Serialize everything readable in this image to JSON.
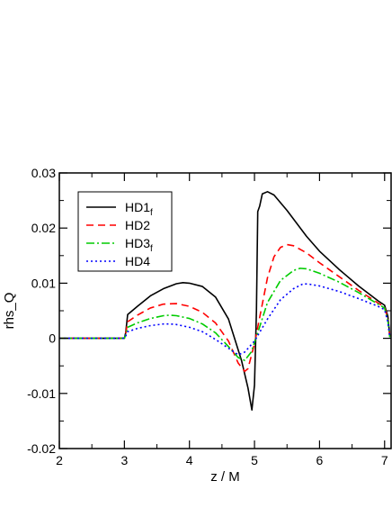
{
  "chart_data": {
    "type": "line",
    "xlabel": "z / M",
    "ylabel": "rhs_Q",
    "xlim": [
      2,
      7.1
    ],
    "ylim": [
      -0.02,
      0.03
    ],
    "xticks": [
      2,
      3,
      4,
      5,
      6,
      7
    ],
    "xtick_labels": [
      "2",
      "3",
      "4",
      "5",
      "6",
      "7"
    ],
    "yticks": [
      -0.02,
      -0.01,
      0,
      0.01,
      0.02,
      0.03
    ],
    "ytick_labels": [
      "-0.02",
      "-0.01",
      "0",
      "0.01",
      "0.02",
      "0.03"
    ],
    "grid": false,
    "legend_position": "top-left",
    "series": [
      {
        "name": "HD1",
        "subscript": "f",
        "color": "#000000",
        "dash": "",
        "points": [
          [
            2,
            0
          ],
          [
            2.4,
            0
          ],
          [
            2.8,
            0
          ],
          [
            3.0,
            0
          ],
          [
            3.02,
            0.001
          ],
          [
            3.05,
            0.0043
          ],
          [
            3.2,
            0.0058
          ],
          [
            3.4,
            0.0077
          ],
          [
            3.6,
            0.009
          ],
          [
            3.8,
            0.0099
          ],
          [
            3.9,
            0.0101
          ],
          [
            4.0,
            0.01
          ],
          [
            4.2,
            0.0094
          ],
          [
            4.4,
            0.0075
          ],
          [
            4.6,
            0.0035
          ],
          [
            4.8,
            -0.004
          ],
          [
            4.9,
            -0.009
          ],
          [
            4.96,
            -0.013
          ],
          [
            5.0,
            -0.0085
          ],
          [
            5.03,
            0.005
          ],
          [
            5.05,
            0.023
          ],
          [
            5.08,
            0.024
          ],
          [
            5.12,
            0.0262
          ],
          [
            5.2,
            0.0266
          ],
          [
            5.3,
            0.026
          ],
          [
            5.5,
            0.0232
          ],
          [
            5.8,
            0.0185
          ],
          [
            6.0,
            0.0158
          ],
          [
            6.3,
            0.0125
          ],
          [
            6.6,
            0.0095
          ],
          [
            6.9,
            0.0068
          ],
          [
            7.0,
            0.006
          ],
          [
            7.05,
            0.004
          ],
          [
            7.08,
            0.0005
          ]
        ]
      },
      {
        "name": "HD2",
        "subscript": "",
        "color": "#ff0000",
        "dash": "8,5",
        "points": [
          [
            2,
            0
          ],
          [
            2.4,
            0
          ],
          [
            2.8,
            0
          ],
          [
            3.0,
            0
          ],
          [
            3.02,
            0.0008
          ],
          [
            3.05,
            0.003
          ],
          [
            3.2,
            0.0042
          ],
          [
            3.4,
            0.0055
          ],
          [
            3.6,
            0.0062
          ],
          [
            3.8,
            0.0063
          ],
          [
            4.0,
            0.0058
          ],
          [
            4.2,
            0.0047
          ],
          [
            4.4,
            0.0028
          ],
          [
            4.6,
            -0.0005
          ],
          [
            4.75,
            -0.0045
          ],
          [
            4.85,
            -0.006
          ],
          [
            4.9,
            -0.0055
          ],
          [
            5.0,
            -0.001
          ],
          [
            5.1,
            0.005
          ],
          [
            5.2,
            0.011
          ],
          [
            5.3,
            0.0148
          ],
          [
            5.4,
            0.0165
          ],
          [
            5.5,
            0.017
          ],
          [
            5.6,
            0.0168
          ],
          [
            5.8,
            0.0155
          ],
          [
            6.0,
            0.0137
          ],
          [
            6.3,
            0.0112
          ],
          [
            6.6,
            0.0087
          ],
          [
            6.9,
            0.0064
          ],
          [
            7.0,
            0.0057
          ],
          [
            7.05,
            0.0035
          ],
          [
            7.08,
            0.0003
          ]
        ]
      },
      {
        "name": "HD3",
        "subscript": "f",
        "color": "#00cc00",
        "dash": "9,3,2,3",
        "points": [
          [
            2,
            0
          ],
          [
            2.4,
            0
          ],
          [
            2.8,
            0
          ],
          [
            3.0,
            0
          ],
          [
            3.02,
            0.0006
          ],
          [
            3.05,
            0.002
          ],
          [
            3.2,
            0.0028
          ],
          [
            3.4,
            0.0036
          ],
          [
            3.6,
            0.0041
          ],
          [
            3.7,
            0.0042
          ],
          [
            3.8,
            0.0041
          ],
          [
            4.0,
            0.0036
          ],
          [
            4.2,
            0.0026
          ],
          [
            4.4,
            0.001
          ],
          [
            4.6,
            -0.0015
          ],
          [
            4.75,
            -0.0035
          ],
          [
            4.85,
            -0.004
          ],
          [
            4.95,
            -0.0025
          ],
          [
            5.05,
            0.001
          ],
          [
            5.2,
            0.0065
          ],
          [
            5.4,
            0.0105
          ],
          [
            5.6,
            0.0123
          ],
          [
            5.7,
            0.0127
          ],
          [
            5.8,
            0.0126
          ],
          [
            6.0,
            0.0118
          ],
          [
            6.3,
            0.0102
          ],
          [
            6.6,
            0.0083
          ],
          [
            6.9,
            0.0062
          ],
          [
            7.0,
            0.0055
          ],
          [
            7.05,
            0.0032
          ],
          [
            7.08,
            0.0002
          ]
        ]
      },
      {
        "name": "HD4",
        "subscript": "",
        "color": "#0000ff",
        "dash": "2,3",
        "points": [
          [
            2,
            0
          ],
          [
            2.4,
            0
          ],
          [
            2.8,
            0
          ],
          [
            3.0,
            0
          ],
          [
            3.02,
            0.0004
          ],
          [
            3.05,
            0.0012
          ],
          [
            3.2,
            0.0018
          ],
          [
            3.4,
            0.0023
          ],
          [
            3.6,
            0.0026
          ],
          [
            3.7,
            0.0026
          ],
          [
            3.8,
            0.0025
          ],
          [
            4.0,
            0.002
          ],
          [
            4.2,
            0.0012
          ],
          [
            4.4,
            -0.0002
          ],
          [
            4.6,
            -0.0018
          ],
          [
            4.75,
            -0.003
          ],
          [
            4.85,
            -0.0025
          ],
          [
            5.0,
            -0.0005
          ],
          [
            5.2,
            0.0035
          ],
          [
            5.4,
            0.007
          ],
          [
            5.6,
            0.009
          ],
          [
            5.75,
            0.0099
          ],
          [
            5.85,
            0.0098
          ],
          [
            6.0,
            0.0095
          ],
          [
            6.3,
            0.0085
          ],
          [
            6.6,
            0.0072
          ],
          [
            6.9,
            0.0058
          ],
          [
            7.0,
            0.0052
          ],
          [
            7.05,
            0.003
          ],
          [
            7.08,
            0.0001
          ]
        ]
      }
    ]
  }
}
